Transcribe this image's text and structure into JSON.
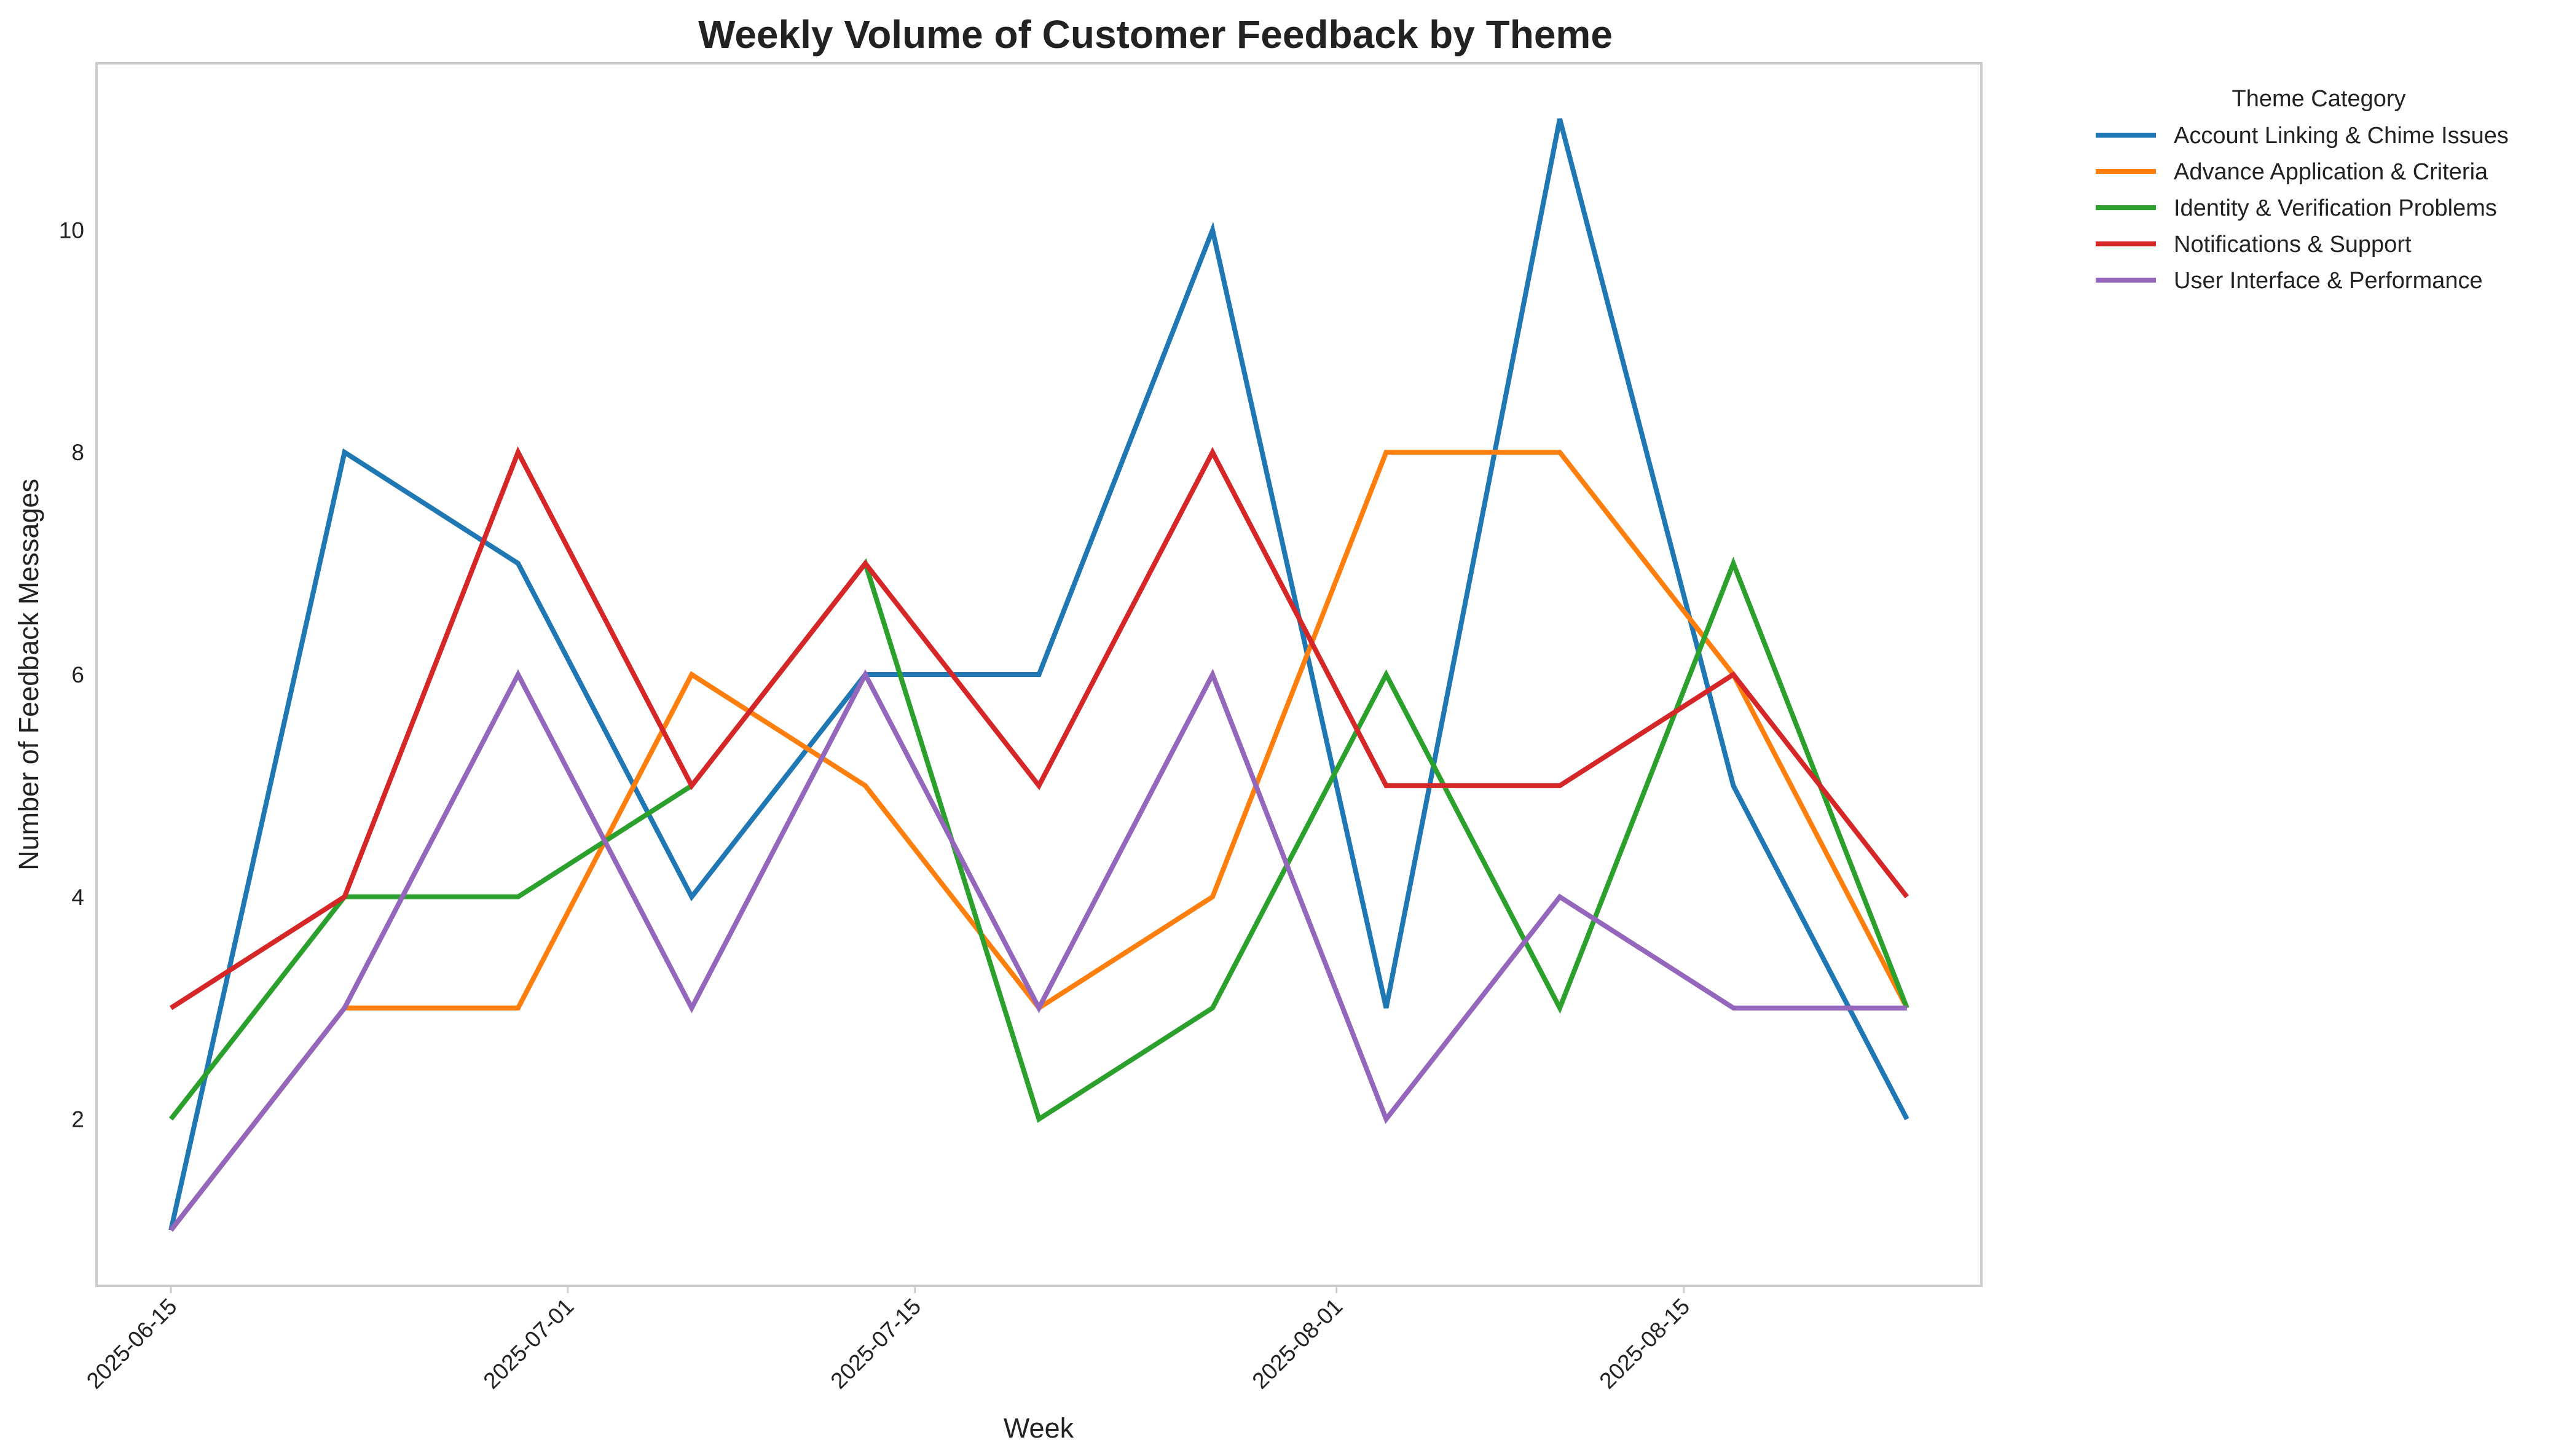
{
  "chart_data": {
    "type": "line",
    "title": "Weekly Volume of Customer Feedback by Theme",
    "xlabel": "Week",
    "ylabel": "Number of Feedback Messages",
    "x": [
      "2025-06-15",
      "2025-06-22",
      "2025-06-29",
      "2025-07-06",
      "2025-07-13",
      "2025-07-20",
      "2025-07-27",
      "2025-08-03",
      "2025-08-10",
      "2025-08-17",
      "2025-08-24"
    ],
    "x_ticks": [
      "2025-06-15",
      "2025-07-01",
      "2025-07-15",
      "2025-08-01",
      "2025-08-15"
    ],
    "xlim": [
      "2025-06-12",
      "2025-08-27"
    ],
    "ylim": [
      0.5,
      11.5
    ],
    "y_ticks": [
      2,
      4,
      6,
      8,
      10
    ],
    "grid": false,
    "legend": {
      "title": "Theme Category",
      "placement": "outside top-right"
    },
    "series": [
      {
        "name": "Account Linking & Chime Issues",
        "color": "#1f77b4",
        "values": [
          1,
          8,
          7,
          4,
          6,
          6,
          10,
          3,
          11,
          5,
          2
        ]
      },
      {
        "name": "Advance Application & Criteria",
        "color": "#ff7f0e",
        "values": [
          1,
          3,
          3,
          6,
          5,
          3,
          4,
          8,
          8,
          6,
          3
        ]
      },
      {
        "name": "Identity & Verification Problems",
        "color": "#2ca02c",
        "values": [
          2,
          4,
          4,
          5,
          7,
          2,
          3,
          6,
          3,
          7,
          3
        ]
      },
      {
        "name": "Notifications & Support",
        "color": "#d62728",
        "values": [
          3,
          4,
          8,
          5,
          7,
          5,
          8,
          5,
          5,
          6,
          4
        ]
      },
      {
        "name": "User Interface & Performance",
        "color": "#9467bd",
        "values": [
          1,
          3,
          6,
          3,
          6,
          3,
          6,
          2,
          4,
          3,
          3
        ]
      }
    ]
  }
}
